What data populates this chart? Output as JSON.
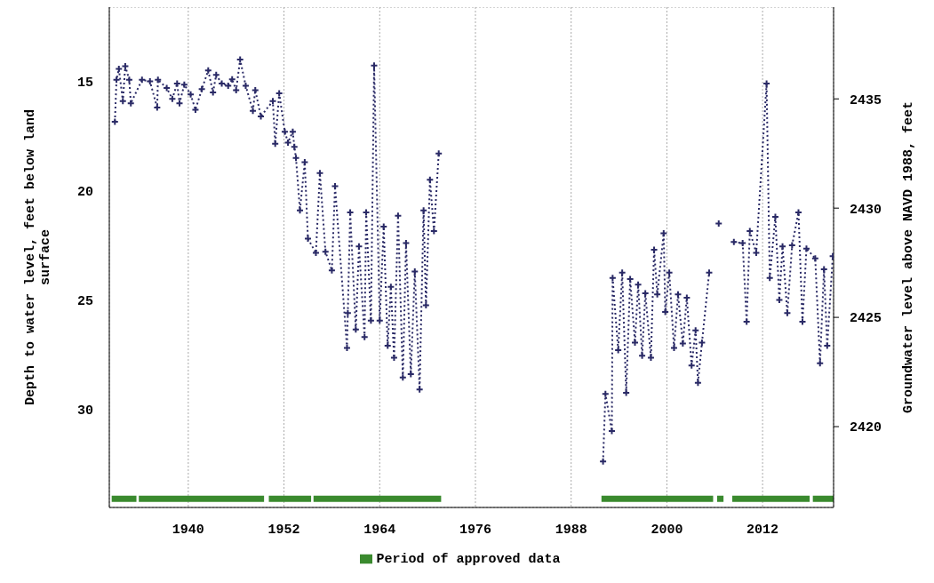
{
  "chart_data": {
    "type": "line",
    "ylabel": "Depth to water level, feet below land surface",
    "y2label": "Groundwater level above NAVD 1988, feet",
    "xlim": [
      1930.1,
      2020.9
    ],
    "xticks": [
      1940,
      1952,
      1964,
      1976,
      1988,
      2000,
      2012
    ],
    "ylim": [
      34.5,
      11.6
    ],
    "yticks": [
      15,
      20,
      25,
      30
    ],
    "y2lim": [
      2416.3,
      2439.2
    ],
    "y2ticks": [
      2420,
      2425,
      2430,
      2435
    ],
    "grid": true,
    "legend": "bottom",
    "marker": "cross",
    "line_style": "dotted",
    "series": [
      {
        "name": "Period of approved data",
        "color": "#3a8a2e",
        "marker": "none",
        "line_style": "solid",
        "x": [
          1930.4,
          1933.5,
          1933.6,
          1933.8,
          1949.5,
          1949.8,
          1950.1,
          1955.4,
          1955.5,
          1955.7,
          1971.7,
          1980.0,
          1991.8,
          2005.8,
          2006.0,
          2006.3,
          2007.1,
          2007.6,
          2008.2,
          2017.9,
          2018.1,
          2018.3,
          2020.9
        ],
        "values": [
          34.1,
          34.1,
          null,
          34.1,
          34.1,
          null,
          34.1,
          34.1,
          null,
          34.1,
          34.1,
          null,
          34.1,
          34.1,
          null,
          34.1,
          34.1,
          null,
          34.1,
          34.1,
          null,
          34.1,
          34.1
        ]
      },
      {
        "color": "#2a2a66",
        "x": [
          1930.8,
          1931.0,
          1931.3,
          1931.8,
          1932.1,
          1932.6,
          1932.8,
          1934.2,
          1935.2,
          1936.1,
          1936.2,
          1937.3,
          1938.0,
          1938.6,
          1938.9,
          1939.5,
          1940.3,
          1940.9,
          1941.7,
          1942.5,
          1943.1,
          1943.5,
          1944.2,
          1945.0,
          1945.5,
          1946.0,
          1946.5,
          1947.2,
          1948.1,
          1948.4,
          1949.1,
          1950.6,
          1950.9,
          1951.4,
          1952.1,
          1952.5,
          1953.1,
          1953.3,
          1953.5,
          1954.0,
          1954.6,
          1955.0,
          1956.0,
          1956.5,
          1957.2,
          1958.0,
          1958.4,
          1959.9,
          1960.0,
          1960.3,
          1961.0,
          1961.4,
          1962.1,
          1962.3,
          1962.9,
          1963.3,
          1964.0,
          1964.5,
          1965.0,
          1965.4,
          1965.8,
          1966.3,
          1966.9,
          1967.3,
          1967.9,
          1968.4,
          1969.0,
          1969.5,
          1969.8,
          1970.3,
          1970.8,
          1971.4,
          1980.0,
          1992.0,
          1992.3,
          1993.1,
          1993.2,
          1993.9,
          1994.4,
          1994.9,
          1995.4,
          1996.0,
          1996.4,
          1996.9,
          1997.3,
          1998.0,
          1998.4,
          1998.8,
          1999.6,
          1999.8,
          2000.3,
          2000.9,
          2001.4,
          2002.0,
          2002.5,
          2003.1,
          2003.6,
          2003.9,
          2004.4,
          2005.3,
          2005.9,
          2006.5,
          2007.5,
          2008.4,
          2009.5,
          2010.0,
          2010.4,
          2011.2,
          2012.5,
          2012.9,
          2013.6,
          2014.1,
          2014.5,
          2015.1,
          2015.7,
          2016.5,
          2017.0,
          2017.5,
          2018.6,
          2019.2,
          2019.7,
          2020.1,
          2020.8
        ],
        "values": [
          16.85,
          14.93,
          14.43,
          15.9,
          14.3,
          14.93,
          16.0,
          14.93,
          15.0,
          16.2,
          14.93,
          15.3,
          15.8,
          15.1,
          16.0,
          15.15,
          15.6,
          16.3,
          15.35,
          14.5,
          15.5,
          14.7,
          15.1,
          15.2,
          14.9,
          15.4,
          14.0,
          15.2,
          16.35,
          15.4,
          16.6,
          15.9,
          17.85,
          15.55,
          17.3,
          17.8,
          17.3,
          18.0,
          18.5,
          20.9,
          18.7,
          22.2,
          22.85,
          19.2,
          22.8,
          23.65,
          19.8,
          27.2,
          25.6,
          21.0,
          26.35,
          22.55,
          26.7,
          21.0,
          25.95,
          14.27,
          25.95,
          21.65,
          27.1,
          24.4,
          27.65,
          21.15,
          28.55,
          22.4,
          28.4,
          23.7,
          29.1,
          20.9,
          25.25,
          19.5,
          21.85,
          18.3,
          null,
          32.4,
          29.3,
          31.0,
          24.0,
          27.3,
          23.75,
          29.25,
          24.05,
          26.95,
          24.3,
          27.55,
          24.7,
          27.65,
          22.7,
          24.75,
          21.95,
          25.55,
          23.75,
          27.2,
          24.75,
          27.0,
          24.9,
          28.0,
          26.4,
          28.8,
          26.95,
          23.75,
          null,
          21.5,
          null,
          22.35,
          22.4,
          26.0,
          21.85,
          22.85,
          15.1,
          24.0,
          21.2,
          25.0,
          22.55,
          25.6,
          22.5,
          21.0,
          26.0,
          22.65,
          23.1,
          27.9,
          23.6,
          27.1,
          23.0
        ]
      }
    ]
  }
}
